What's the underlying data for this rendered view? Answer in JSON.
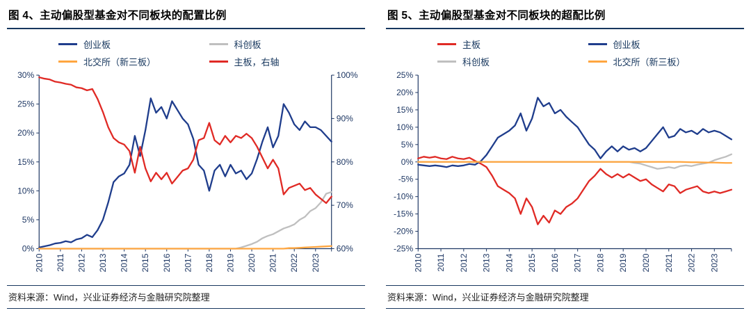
{
  "colors": {
    "rule": "#17375E",
    "axis_text": "#1F3864",
    "main_board_red": "#E02A25",
    "chinext_blue": "#1F3D8C",
    "star_gray": "#BFBFBF",
    "bse_orange": "#FFA640"
  },
  "panels": [
    {
      "title": "图 4、主动偏股型基金对不同板块的配置比例",
      "source": "资料来源：Wind，兴业证券经济与金融研究院整理"
    },
    {
      "title": "图 5、主动偏股型基金对不同板块的超配比例",
      "source": "资料来源：Wind，兴业证券经济与金融研究院整理"
    }
  ],
  "chart_data": [
    {
      "type": "line",
      "title": "图 4、主动偏股型基金对不同板块的配置比例",
      "legend_position": "top",
      "grid": false,
      "x_tick_labels": [
        "2010",
        "2011",
        "2012",
        "2013",
        "2014",
        "2015",
        "2016",
        "2017",
        "2018",
        "2019",
        "2020",
        "2021",
        "2022",
        "2023"
      ],
      "x_points_per_year": 4,
      "left_axis": {
        "min": 0,
        "max": 30,
        "step": 5,
        "unit": "%"
      },
      "right_axis": {
        "min": 60,
        "max": 100,
        "step": 10,
        "unit": "%"
      },
      "series": [
        {
          "name": "创业板",
          "color": "#1F3D8C",
          "axis": "left",
          "values": [
            0.2,
            0.4,
            0.6,
            0.9,
            1.0,
            1.3,
            1.1,
            1.6,
            1.8,
            2.4,
            2.0,
            3.2,
            5.0,
            8.0,
            11.5,
            12.5,
            13.0,
            14.5,
            19.5,
            16.0,
            20.5,
            26.0,
            23.5,
            24.5,
            22.5,
            25.5,
            24.0,
            22.5,
            21.5,
            19.0,
            14.5,
            13.5,
            10.0,
            13.5,
            14.5,
            12.5,
            14.5,
            13.0,
            13.5,
            12.0,
            13.0,
            15.5,
            18.5,
            21.0,
            17.5,
            19.5,
            25.0,
            23.5,
            21.5,
            20.5,
            22.0,
            21.0,
            21.0,
            20.5,
            19.5,
            18.5
          ]
        },
        {
          "name": "科创板",
          "color": "#BFBFBF",
          "axis": "left",
          "values": [
            0,
            0,
            0,
            0,
            0,
            0,
            0,
            0,
            0,
            0,
            0,
            0,
            0,
            0,
            0,
            0,
            0,
            0,
            0,
            0,
            0,
            0,
            0,
            0,
            0,
            0,
            0,
            0,
            0,
            0,
            0,
            0,
            0,
            0,
            0,
            0,
            0,
            0,
            0.2,
            0.5,
            0.8,
            1.2,
            1.8,
            2.2,
            2.5,
            3.0,
            3.5,
            3.8,
            4.2,
            5.0,
            5.5,
            6.5,
            7.0,
            8.0,
            9.5,
            9.8
          ]
        },
        {
          "name": "北交所（新三板）",
          "color": "#FFA640",
          "axis": "left",
          "values": [
            0,
            0,
            0,
            0,
            0,
            0,
            0,
            0,
            0,
            0,
            0,
            0,
            0,
            0,
            0,
            0,
            0,
            0,
            0,
            0,
            0,
            0,
            0,
            0,
            0,
            0,
            0,
            0,
            0,
            0,
            0,
            0,
            0,
            0,
            0,
            0,
            0,
            0,
            0,
            0,
            0,
            0,
            0,
            0,
            0,
            0,
            0,
            0.1,
            0.1,
            0.15,
            0.2,
            0.25,
            0.3,
            0.35,
            0.4,
            0.45
          ]
        },
        {
          "name": "主板，右轴",
          "color": "#E02A25",
          "axis": "right",
          "values": [
            99.5,
            99.2,
            99.0,
            98.5,
            98.3,
            98.0,
            97.8,
            97.2,
            97.0,
            96.5,
            96.8,
            94.5,
            91.5,
            88.0,
            85.5,
            84.5,
            84.0,
            82.5,
            77.5,
            83.5,
            78.5,
            75.5,
            77.5,
            76.0,
            77.5,
            75.0,
            76.5,
            78.0,
            78.5,
            80.5,
            85.0,
            85.5,
            89.0,
            85.0,
            84.0,
            86.0,
            84.5,
            86.0,
            85.5,
            86.5,
            85.5,
            83.5,
            81.0,
            78.5,
            80.5,
            78.5,
            72.5,
            74.0,
            74.5,
            75.0,
            73.5,
            74.0,
            72.5,
            71.5,
            70.5,
            72.0
          ]
        }
      ]
    },
    {
      "type": "line",
      "title": "图 5、主动偏股型基金对不同板块的超配比例",
      "legend_position": "top",
      "grid": false,
      "x_tick_labels": [
        "2010",
        "2011",
        "2012",
        "2013",
        "2014",
        "2015",
        "2016",
        "2017",
        "2018",
        "2019",
        "2020",
        "2021",
        "2022",
        "2023"
      ],
      "x_points_per_year": 4,
      "left_axis": {
        "min": -25,
        "max": 25,
        "step": 5,
        "unit": "%"
      },
      "series": [
        {
          "name": "主板",
          "color": "#E02A25",
          "axis": "left",
          "values": [
            1.0,
            1.5,
            1.2,
            1.5,
            1.0,
            0.8,
            1.5,
            1.0,
            0.8,
            1.2,
            0.3,
            -0.5,
            -1.5,
            -4.0,
            -7.0,
            -8.0,
            -9.0,
            -10.5,
            -15.0,
            -10.5,
            -13.0,
            -18.0,
            -15.5,
            -17.5,
            -14.0,
            -15.0,
            -13.0,
            -12.0,
            -10.5,
            -8.0,
            -5.5,
            -4.0,
            -2.0,
            -3.5,
            -4.5,
            -3.5,
            -4.5,
            -3.5,
            -4.5,
            -5.5,
            -5.0,
            -6.5,
            -7.5,
            -8.5,
            -6.5,
            -7.0,
            -9.0,
            -8.0,
            -7.5,
            -7.0,
            -8.5,
            -9.0,
            -8.5,
            -9.0,
            -8.5,
            -8.0
          ]
        },
        {
          "name": "创业板",
          "color": "#1F3D8C",
          "axis": "left",
          "values": [
            -0.8,
            -1.0,
            -1.2,
            -1.0,
            -1.2,
            -1.5,
            -1.0,
            -1.2,
            -1.0,
            -0.6,
            -0.8,
            0.2,
            2.0,
            4.5,
            7.0,
            8.0,
            9.0,
            10.5,
            14.0,
            9.0,
            12.5,
            18.5,
            16.0,
            17.0,
            14.0,
            15.0,
            13.0,
            11.5,
            10.0,
            7.5,
            5.0,
            3.5,
            1.0,
            3.0,
            4.5,
            3.0,
            4.5,
            3.5,
            4.0,
            3.0,
            4.0,
            6.0,
            8.0,
            10.0,
            7.0,
            7.5,
            9.5,
            8.5,
            9.0,
            8.0,
            9.5,
            8.5,
            9.0,
            8.5,
            7.5,
            6.5
          ]
        },
        {
          "name": "科创板",
          "color": "#BFBFBF",
          "axis": "left",
          "values": [
            0,
            0,
            0,
            0,
            0,
            0,
            0,
            0,
            0,
            0,
            0,
            0,
            0,
            0,
            0,
            0,
            0,
            0,
            0,
            0,
            0,
            0,
            0,
            0,
            0,
            0,
            0,
            0,
            0,
            0,
            0,
            0,
            0,
            0,
            0,
            0,
            0,
            0,
            -0.3,
            -0.5,
            -1.0,
            -1.5,
            -2.0,
            -1.8,
            -1.5,
            -1.8,
            -1.2,
            -1.0,
            -1.2,
            -0.8,
            -0.5,
            -0.2,
            0.5,
            1.0,
            1.5,
            2.2
          ]
        },
        {
          "name": "北交所（新三板）",
          "color": "#FFA640",
          "axis": "left",
          "values": [
            0,
            0,
            0,
            0,
            0,
            0,
            0,
            0,
            0,
            0,
            0,
            0,
            0,
            0,
            0,
            0,
            0,
            0,
            0,
            0,
            0,
            0,
            0,
            0,
            0,
            0,
            0,
            0,
            0,
            0,
            0,
            0,
            0,
            0,
            0,
            0,
            0,
            0,
            0,
            0,
            0,
            0,
            0,
            0,
            0,
            0,
            0,
            -0.05,
            -0.1,
            -0.1,
            -0.15,
            -0.2,
            -0.2,
            -0.25,
            -0.3,
            -0.3
          ]
        }
      ]
    }
  ]
}
